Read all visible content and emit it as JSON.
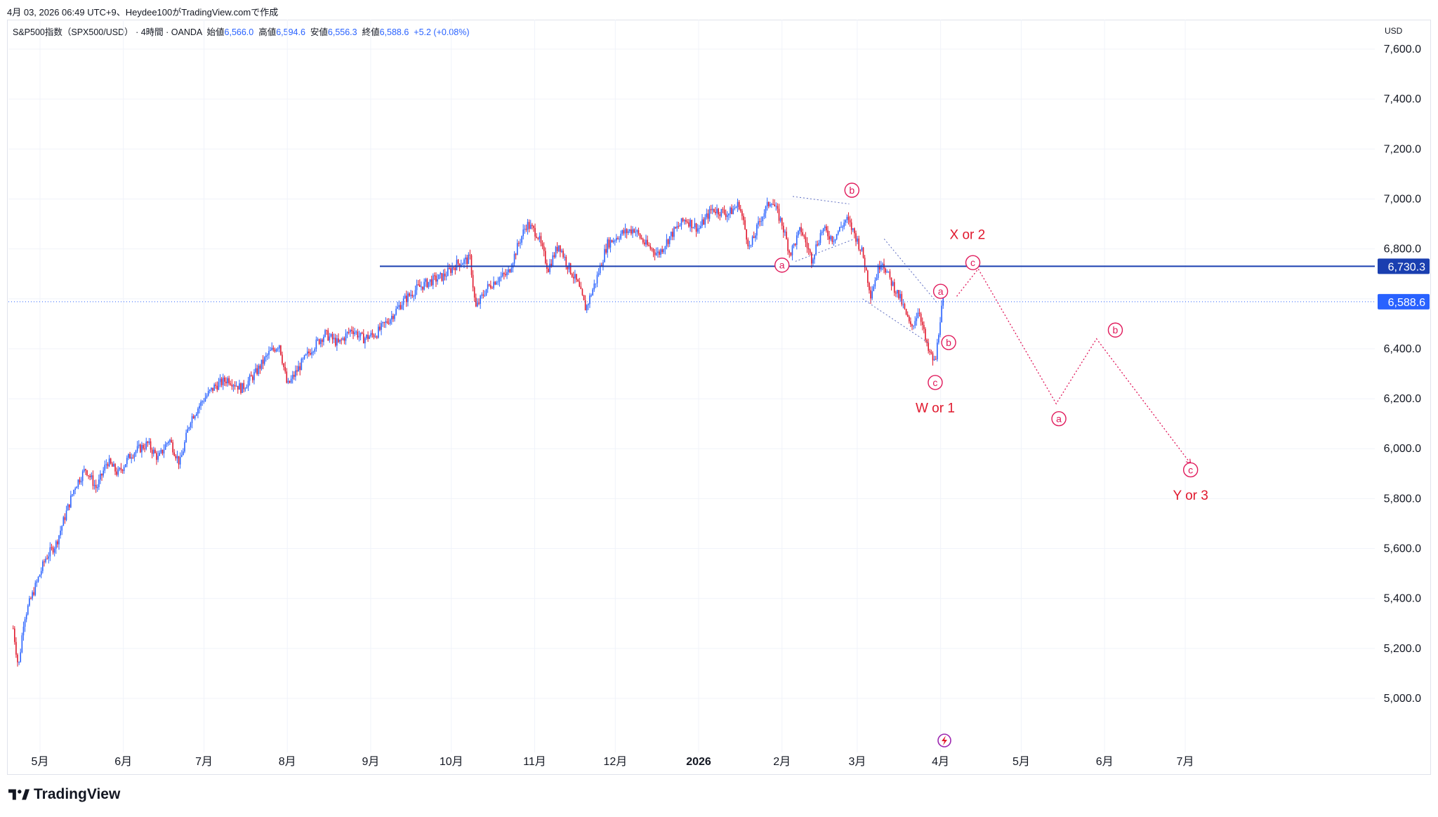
{
  "caption": "4月 03, 2026 06:49 UTC+9、Heydee100がTradingView.comで作成",
  "legend": {
    "symbol": "S&P500指数（SPX500/USD）",
    "interval": "· 4時間 · OANDA",
    "open_label": "始値",
    "open": "6,566.0",
    "high_label": "高値",
    "high": "6,594.6",
    "low_label": "安値",
    "low": "6,556.3",
    "close_label": "終値",
    "close": "6,588.6",
    "change": "+5.2 (+0.08%)"
  },
  "currency": "USD",
  "brand": "TradingView",
  "colors": {
    "up": "#2962ff",
    "down": "#e0182d",
    "level_line": "#1a3fb0",
    "wave_label": "#e0185a",
    "annotation_red": "#e0182d",
    "projection": "#e0185a",
    "grid": "#f0f3fa"
  },
  "chart_data": {
    "type": "candlestick",
    "title": "",
    "xlabel": "",
    "ylabel": "",
    "ylim": [
      4800,
      7650
    ],
    "y_ticks": [
      "7,600.0",
      "7,400.0",
      "7,200.0",
      "7,000.0",
      "6,800.0",
      "6,600.0",
      "6,400.0",
      "6,200.0",
      "6,000.0",
      "5,800.0",
      "5,600.0",
      "5,400.0",
      "5,200.0",
      "5,000.0"
    ],
    "y_tick_values": [
      7600,
      7400,
      7200,
      7000,
      6800,
      6600,
      6400,
      6200,
      6000,
      5800,
      5600,
      5400,
      5200,
      5000
    ],
    "x_ticks": [
      {
        "label": "5月",
        "date": "2025-05-01",
        "bold": false
      },
      {
        "label": "6月",
        "date": "2025-06-01",
        "bold": false
      },
      {
        "label": "7月",
        "date": "2025-07-01",
        "bold": false
      },
      {
        "label": "8月",
        "date": "2025-08-01",
        "bold": false
      },
      {
        "label": "9月",
        "date": "2025-09-01",
        "bold": false
      },
      {
        "label": "10月",
        "date": "2025-10-01",
        "bold": false
      },
      {
        "label": "11月",
        "date": "2025-11-01",
        "bold": false
      },
      {
        "label": "12月",
        "date": "2025-12-01",
        "bold": false
      },
      {
        "label": "2026",
        "date": "2026-01-01",
        "bold": true
      },
      {
        "label": "2月",
        "date": "2026-02-01",
        "bold": false
      },
      {
        "label": "3月",
        "date": "2026-03-01",
        "bold": false
      },
      {
        "label": "4月",
        "date": "2026-04-01",
        "bold": false
      },
      {
        "label": "5月",
        "date": "2026-05-01",
        "bold": false
      },
      {
        "label": "6月",
        "date": "2026-06-01",
        "bold": false
      },
      {
        "label": "7月",
        "date": "2026-07-01",
        "bold": false
      }
    ],
    "price_path": [
      [
        "2025-04-21",
        5280
      ],
      [
        "2025-04-23",
        5120
      ],
      [
        "2025-04-25",
        5320
      ],
      [
        "2025-04-29",
        5440
      ],
      [
        "2025-05-03",
        5560
      ],
      [
        "2025-05-07",
        5620
      ],
      [
        "2025-05-10",
        5720
      ],
      [
        "2025-05-14",
        5850
      ],
      [
        "2025-05-18",
        5920
      ],
      [
        "2025-05-22",
        5840
      ],
      [
        "2025-05-26",
        5950
      ],
      [
        "2025-05-30",
        5900
      ],
      [
        "2025-06-04",
        5980
      ],
      [
        "2025-06-10",
        6020
      ],
      [
        "2025-06-14",
        5960
      ],
      [
        "2025-06-18",
        6040
      ],
      [
        "2025-06-22",
        5940
      ],
      [
        "2025-06-26",
        6120
      ],
      [
        "2025-07-01",
        6200
      ],
      [
        "2025-07-05",
        6250
      ],
      [
        "2025-07-10",
        6280
      ],
      [
        "2025-07-15",
        6240
      ],
      [
        "2025-07-20",
        6300
      ],
      [
        "2025-07-25",
        6380
      ],
      [
        "2025-07-29",
        6420
      ],
      [
        "2025-08-01",
        6250
      ],
      [
        "2025-08-05",
        6320
      ],
      [
        "2025-08-10",
        6400
      ],
      [
        "2025-08-15",
        6460
      ],
      [
        "2025-08-20",
        6420
      ],
      [
        "2025-08-25",
        6480
      ],
      [
        "2025-08-29",
        6440
      ],
      [
        "2025-09-03",
        6460
      ],
      [
        "2025-09-08",
        6520
      ],
      [
        "2025-09-13",
        6590
      ],
      [
        "2025-09-18",
        6640
      ],
      [
        "2025-09-23",
        6670
      ],
      [
        "2025-09-28",
        6690
      ],
      [
        "2025-10-03",
        6740
      ],
      [
        "2025-10-08",
        6760
      ],
      [
        "2025-10-10",
        6560
      ],
      [
        "2025-10-14",
        6640
      ],
      [
        "2025-10-18",
        6680
      ],
      [
        "2025-10-22",
        6700
      ],
      [
        "2025-10-26",
        6820
      ],
      [
        "2025-10-29",
        6900
      ],
      [
        "2025-11-02",
        6860
      ],
      [
        "2025-11-06",
        6720
      ],
      [
        "2025-11-10",
        6820
      ],
      [
        "2025-11-13",
        6740
      ],
      [
        "2025-11-17",
        6660
      ],
      [
        "2025-11-20",
        6560
      ],
      [
        "2025-11-24",
        6680
      ],
      [
        "2025-11-28",
        6820
      ],
      [
        "2025-12-03",
        6860
      ],
      [
        "2025-12-08",
        6880
      ],
      [
        "2025-12-12",
        6820
      ],
      [
        "2025-12-17",
        6780
      ],
      [
        "2025-12-22",
        6860
      ],
      [
        "2025-12-27",
        6920
      ],
      [
        "2026-01-01",
        6880
      ],
      [
        "2026-01-06",
        6960
      ],
      [
        "2026-01-12",
        6940
      ],
      [
        "2026-01-16",
        6980
      ],
      [
        "2026-01-20",
        6800
      ],
      [
        "2026-01-24",
        6920
      ],
      [
        "2026-01-28",
        7000
      ],
      [
        "2026-02-01",
        6900
      ],
      [
        "2026-02-04",
        6780
      ],
      [
        "2026-02-08",
        6880
      ],
      [
        "2026-02-12",
        6760
      ],
      [
        "2026-02-16",
        6880
      ],
      [
        "2026-02-20",
        6840
      ],
      [
        "2026-02-25",
        6920
      ],
      [
        "2026-02-28",
        6860
      ],
      [
        "2026-03-03",
        6780
      ],
      [
        "2026-03-06",
        6620
      ],
      [
        "2026-03-10",
        6760
      ],
      [
        "2026-03-13",
        6680
      ],
      [
        "2026-03-17",
        6600
      ],
      [
        "2026-03-21",
        6480
      ],
      [
        "2026-03-24",
        6560
      ],
      [
        "2026-03-27",
        6400
      ],
      [
        "2026-03-30",
        6340
      ],
      [
        "2026-04-01",
        6540
      ],
      [
        "2026-04-02",
        6588.6
      ]
    ],
    "price_levels": [
      {
        "value": 6730.3,
        "label": "6,730.3",
        "style": "solid"
      },
      {
        "value": 6588.6,
        "label": "6,588.6",
        "style": "dotted"
      }
    ],
    "wave_labels": [
      {
        "text": "a",
        "date": "2026-02-01",
        "y": 6735
      },
      {
        "text": "b",
        "date": "2026-02-27",
        "y": 7035
      },
      {
        "text": "c",
        "date": "2026-03-30",
        "y": 6265
      },
      {
        "text": "a",
        "date": "2026-04-01",
        "y": 6630
      },
      {
        "text": "b",
        "date": "2026-04-04",
        "y": 6425
      },
      {
        "text": "c",
        "date": "2026-04-13",
        "y": 6745
      },
      {
        "text": "a",
        "date": "2026-05-15",
        "y": 6120
      },
      {
        "text": "b",
        "date": "2026-06-05",
        "y": 6475
      },
      {
        "text": "c",
        "date": "2026-07-03",
        "y": 5915
      }
    ],
    "annotations": [
      {
        "text": "X or 2",
        "date": "2026-04-11",
        "y": 6860
      },
      {
        "text": "W or 1",
        "date": "2026-03-30",
        "y": 6165
      },
      {
        "text": "Y or 3",
        "date": "2026-07-03",
        "y": 5815
      }
    ],
    "projection_path": [
      [
        "2026-04-07",
        6610
      ],
      [
        "2026-04-15",
        6720
      ],
      [
        "2026-05-14",
        6180
      ],
      [
        "2026-05-29",
        6440
      ],
      [
        "2026-07-03",
        5940
      ]
    ],
    "triangle_lines": [
      [
        [
          "2026-02-06",
          6750
        ],
        [
          "2026-02-28",
          6840
        ]
      ],
      [
        [
          "2026-02-05",
          7010
        ],
        [
          "2026-02-26",
          6980
        ]
      ]
    ],
    "channel_lines": [
      [
        [
          "2026-03-03",
          6600
        ],
        [
          "2026-03-28",
          6420
        ]
      ],
      [
        [
          "2026-03-11",
          6840
        ],
        [
          "2026-03-31",
          6580
        ]
      ]
    ]
  }
}
